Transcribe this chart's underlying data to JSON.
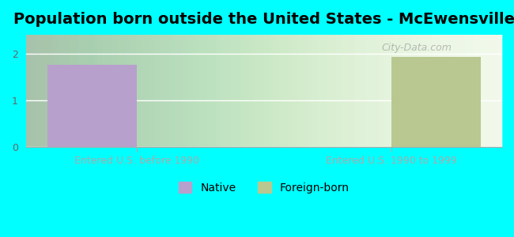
{
  "title": "Population born outside the United States - McEwensville",
  "background_color": "#00FFFF",
  "plot_bg_color": "#f0f8e8",
  "categories": [
    "Entered U.S. before 1990",
    "Entered U.S. 1990 to 1999"
  ],
  "native_values": [
    1.75,
    0
  ],
  "foreign_values": [
    0,
    1.93
  ],
  "native_color": "#b8a0cc",
  "foreign_color": "#b8c890",
  "ylim": [
    0,
    2.4
  ],
  "yticks": [
    0,
    1,
    2
  ],
  "xlabel_color": "#cc6666",
  "title_fontsize": 14,
  "tick_fontsize": 9,
  "legend_fontsize": 10,
  "watermark": "City-Data.com",
  "bar_width": 0.35
}
